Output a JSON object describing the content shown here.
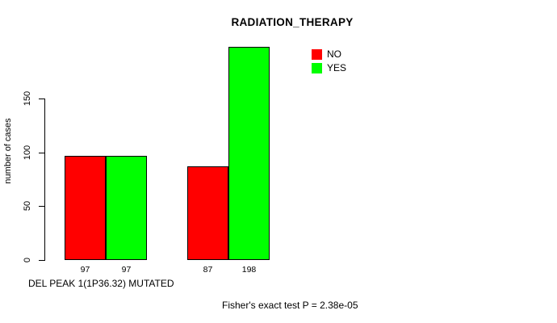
{
  "chart_data": {
    "type": "bar",
    "title": "RADIATION_THERAPY",
    "ylabel": "number of cases",
    "xlabel": "DEL PEAK 1(1P36.32) MUTATED",
    "annotation": "Fisher's exact test P = 2.38e-05",
    "ylim": [
      0,
      200
    ],
    "yticks": [
      0,
      50,
      100,
      150
    ],
    "grid": false,
    "legend_position": "top-right",
    "legend": [
      {
        "label": "NO",
        "color": "#ff0000"
      },
      {
        "label": "YES",
        "color": "#00ff00"
      }
    ],
    "groups": [
      {
        "bars": [
          {
            "series": "NO",
            "value": 97
          },
          {
            "series": "YES",
            "value": 97
          }
        ]
      },
      {
        "bars": [
          {
            "series": "NO",
            "value": 87
          },
          {
            "series": "YES",
            "value": 198
          }
        ]
      }
    ]
  }
}
